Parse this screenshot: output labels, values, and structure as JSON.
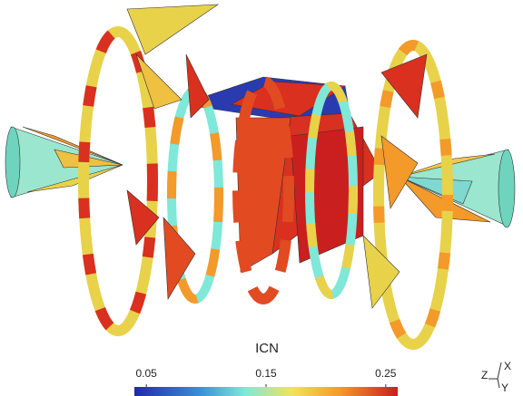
{
  "colorbar": {
    "label": "ICN",
    "range": [
      0.04,
      0.26
    ],
    "ticks": [
      0.05,
      0.15,
      0.25
    ]
  },
  "axes_triad": {
    "x": "X",
    "y": "Y",
    "z": "Z"
  }
}
